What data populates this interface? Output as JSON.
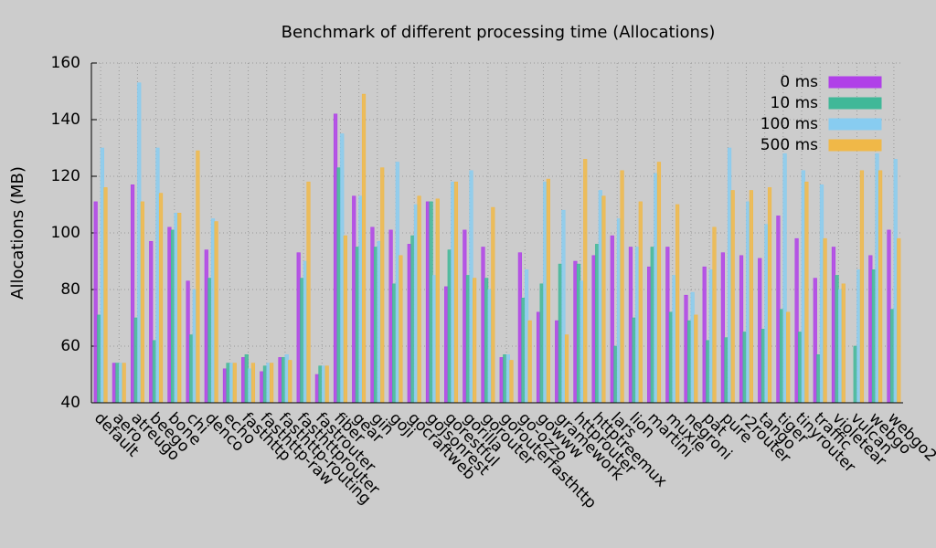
{
  "chart_data": {
    "type": "bar",
    "title": "Benchmark of different processing time (Allocations)",
    "y_label": "Allocations (MB)",
    "categories": [
      "default",
      "aero",
      "atreugo",
      "beego",
      "bone",
      "chi",
      "denco",
      "echo",
      "fasthttp",
      "fasthttp-raw",
      "fasthttp-routing",
      "fasthttprouter",
      "fastrouter",
      "fiber",
      "gear",
      "gin",
      "goji",
      "gocraftweb",
      "gojsonrest",
      "gorestful",
      "gorilla",
      "gorouter",
      "gorouterfasthttp",
      "go-ozzo",
      "gowww",
      "gramework",
      "httprouter",
      "httptreemux",
      "lars",
      "lion",
      "martini",
      "muxie",
      "negroni",
      "pat",
      "pure",
      "r2router",
      "tango",
      "tiger",
      "tinyrouter",
      "traffic",
      "violetear",
      "vulcan",
      "webgo",
      "webgo2"
    ],
    "series": [
      {
        "name": "0 ms",
        "color": "#b040e8",
        "values": [
          111,
          54,
          117,
          97,
          102,
          83,
          94,
          52,
          56,
          51,
          56,
          93,
          50,
          142,
          113,
          102,
          101,
          96,
          111,
          81,
          101,
          95,
          56,
          93,
          72,
          69,
          90,
          92,
          99,
          95,
          88,
          95,
          78,
          88,
          93,
          92,
          91,
          106,
          98,
          84,
          95,
          40,
          92,
          101
        ]
      },
      {
        "name": "10 ms",
        "color": "#40b898",
        "values": [
          71,
          54,
          70,
          62,
          101,
          64,
          84,
          54,
          57,
          53,
          56,
          84,
          53,
          123,
          95,
          95,
          82,
          99,
          111,
          94,
          85,
          84,
          57,
          77,
          82,
          89,
          89,
          96,
          60,
          70,
          95,
          72,
          69,
          62,
          63,
          65,
          66,
          73,
          65,
          57,
          85,
          60,
          87,
          73
        ]
      },
      {
        "name": "100 ms",
        "color": "#88ccf0",
        "values": [
          130,
          54,
          153,
          130,
          107,
          80,
          105,
          54,
          52,
          54,
          57,
          90,
          53,
          135,
          113,
          97,
          125,
          110,
          85,
          118,
          122,
          80,
          57,
          87,
          118,
          108,
          83,
          115,
          105,
          95,
          121,
          85,
          79,
          87,
          130,
          111,
          103,
          128,
          122,
          117,
          80,
          87,
          128,
          126
        ]
      },
      {
        "name": "500 ms",
        "color": "#f0b848",
        "values": [
          116,
          54,
          111,
          114,
          107,
          129,
          104,
          54,
          54,
          54,
          55,
          118,
          53,
          99,
          149,
          123,
          92,
          113,
          112,
          118,
          84,
          109,
          55,
          69,
          119,
          64,
          126,
          113,
          122,
          111,
          125,
          110,
          71,
          102,
          115,
          115,
          116,
          72,
          118,
          98,
          82,
          122,
          122,
          98
        ]
      }
    ],
    "ylim": [
      40,
      160
    ],
    "yticks": [
      40,
      60,
      80,
      100,
      120,
      140,
      160
    ],
    "grid": true,
    "legend": "top-right"
  }
}
